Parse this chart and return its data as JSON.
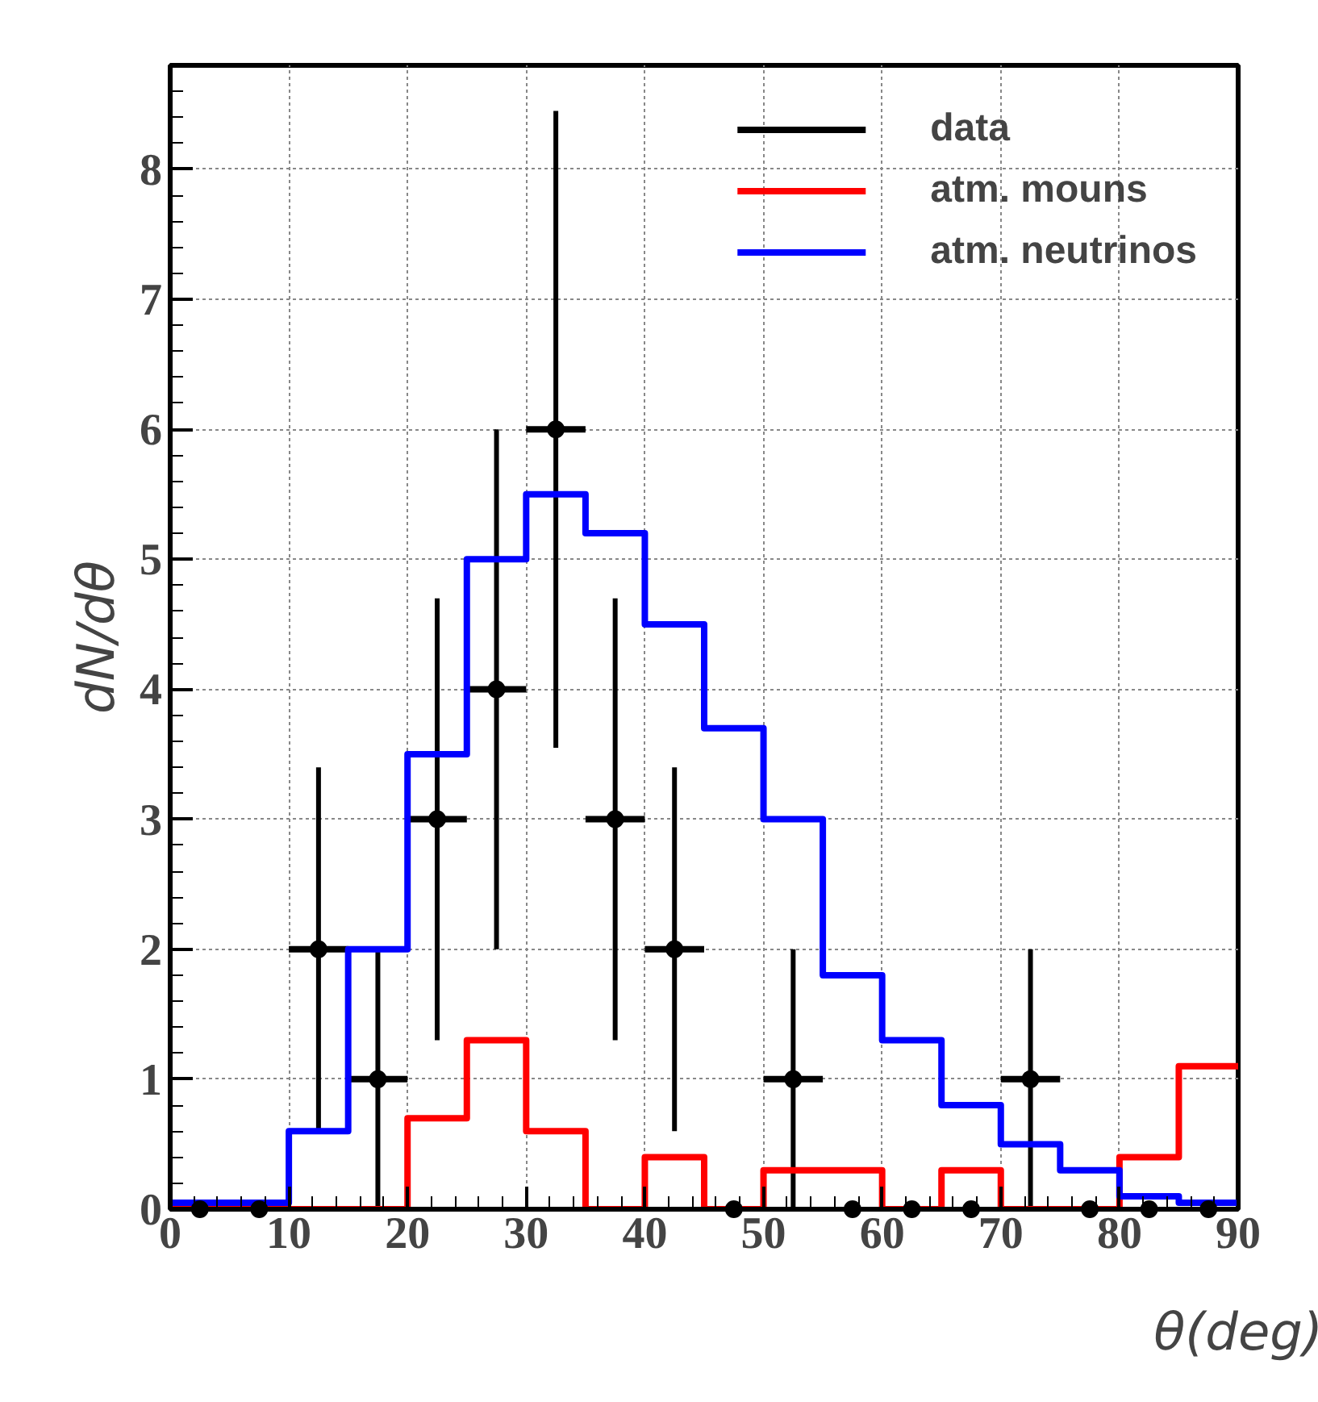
{
  "chart_data": {
    "type": "histogram",
    "xlabel": "θ(deg)",
    "ylabel": "dN/dθ",
    "bins": [
      0,
      5,
      10,
      15,
      20,
      25,
      30,
      35,
      40,
      45,
      50,
      55,
      60,
      65,
      70,
      75,
      80,
      85,
      90
    ],
    "series": [
      {
        "name": "data",
        "type": "scatter",
        "color": "#000000",
        "x": [
          2.5,
          7.5,
          12.5,
          17.5,
          22.5,
          27.5,
          32.5,
          37.5,
          42.5,
          47.5,
          52.5,
          57.5,
          62.5,
          67.5,
          72.5,
          77.5,
          82.5,
          87.5
        ],
        "values": [
          0,
          0,
          2,
          1,
          3,
          4,
          6,
          3,
          2,
          0,
          1,
          0,
          0,
          0,
          1,
          0,
          0,
          0
        ],
        "errors": [
          null,
          null,
          1.4,
          1,
          1.7,
          2,
          2.45,
          1.7,
          1.4,
          null,
          1,
          null,
          null,
          null,
          1,
          null,
          null,
          null
        ],
        "xerrors": [
          null,
          null,
          2.5,
          2.5,
          2.5,
          2.5,
          2.5,
          2.5,
          2.5,
          null,
          2.5,
          null,
          null,
          null,
          2.5,
          null,
          null,
          null
        ]
      },
      {
        "name": "atm. mouns",
        "color": "#ff0000",
        "values": [
          0,
          0,
          0,
          0,
          0.7,
          1.3,
          0.6,
          0,
          0.4,
          0,
          0.3,
          0.3,
          0,
          0.3,
          0,
          0,
          0.4,
          1.1
        ]
      },
      {
        "name": "atm. neutrinos",
        "color": "#0000ff",
        "values": [
          0.05,
          0.05,
          0.6,
          2.0,
          3.5,
          5.0,
          5.5,
          5.2,
          4.5,
          3.7,
          3.0,
          1.8,
          1.3,
          0.8,
          0.5,
          0.3,
          0.1,
          0.05
        ]
      }
    ],
    "xlim": [
      0,
      90
    ],
    "ylim": [
      0,
      8.8
    ],
    "xticks": [
      0,
      10,
      20,
      30,
      40,
      50,
      60,
      70,
      80,
      90
    ],
    "yticks": [
      0,
      1,
      2,
      3,
      4,
      5,
      6,
      7,
      8
    ],
    "grid": true,
    "legend": "top right",
    "marker": "circle"
  }
}
